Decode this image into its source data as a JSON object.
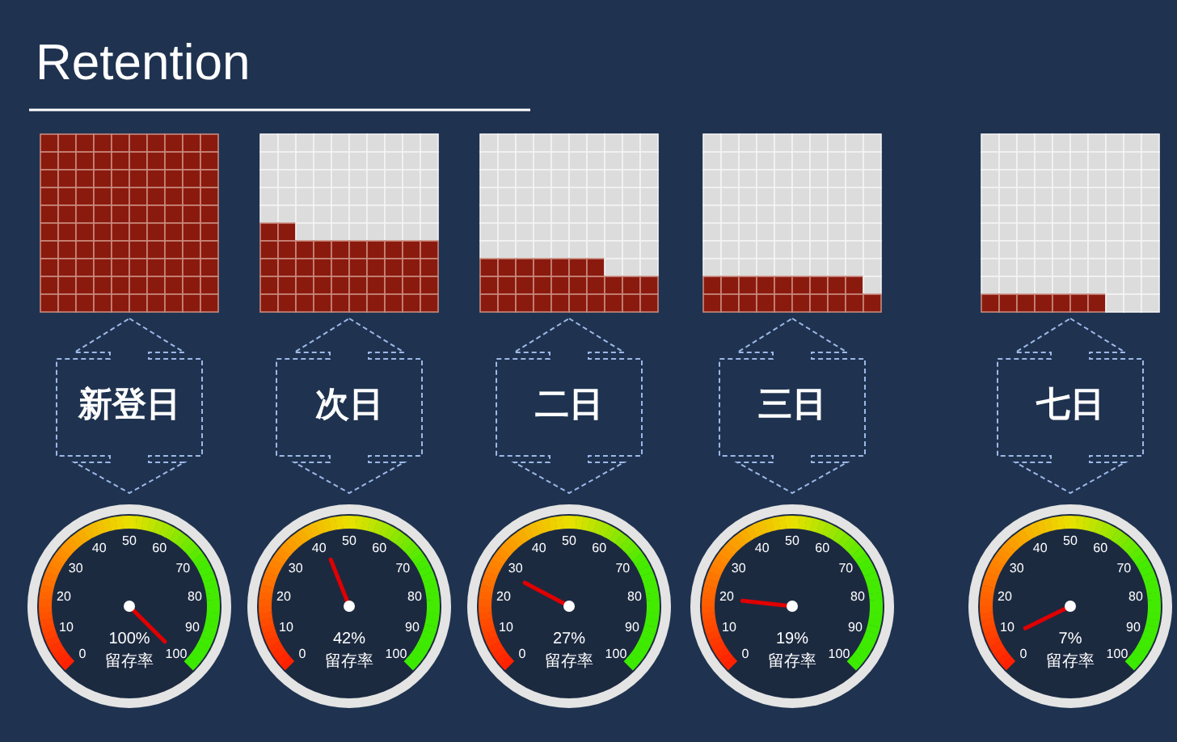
{
  "chart_data": [
    {
      "type": "other",
      "title": "Retention",
      "categories": [
        "新登日"
      ],
      "values": [
        100
      ],
      "value_labels": [
        "100%"
      ],
      "annotations": [
        "0",
        "10",
        "20",
        "30",
        "40",
        "50",
        "60",
        "70",
        "80",
        "90",
        "100",
        "留存率"
      ]
    },
    {
      "type": "other",
      "categories": [
        "次日"
      ],
      "values": [
        42
      ],
      "value_labels": [
        "42%"
      ],
      "annotations": [
        "0",
        "10",
        "20",
        "30",
        "40",
        "50",
        "60",
        "70",
        "80",
        "90",
        "100",
        "留存率"
      ]
    },
    {
      "type": "other",
      "categories": [
        "二日"
      ],
      "values": [
        27
      ],
      "value_labels": [
        "27%"
      ],
      "annotations": [
        "0",
        "10",
        "20",
        "30",
        "40",
        "50",
        "60",
        "70",
        "80",
        "90",
        "100",
        "留存率"
      ]
    },
    {
      "type": "other",
      "categories": [
        "三日"
      ],
      "values": [
        19
      ],
      "value_labels": [
        "19%"
      ],
      "annotations": [
        "0",
        "10",
        "20",
        "30",
        "40",
        "50",
        "60",
        "70",
        "80",
        "90",
        "100",
        "留存率"
      ]
    },
    {
      "type": "other",
      "categories": [
        "七日"
      ],
      "values": [
        7
      ],
      "value_labels": [
        "7%"
      ],
      "annotations": [
        "0",
        "10",
        "20",
        "30",
        "40",
        "50",
        "60",
        "70",
        "80",
        "90",
        "100",
        "留存率"
      ]
    }
  ]
}
